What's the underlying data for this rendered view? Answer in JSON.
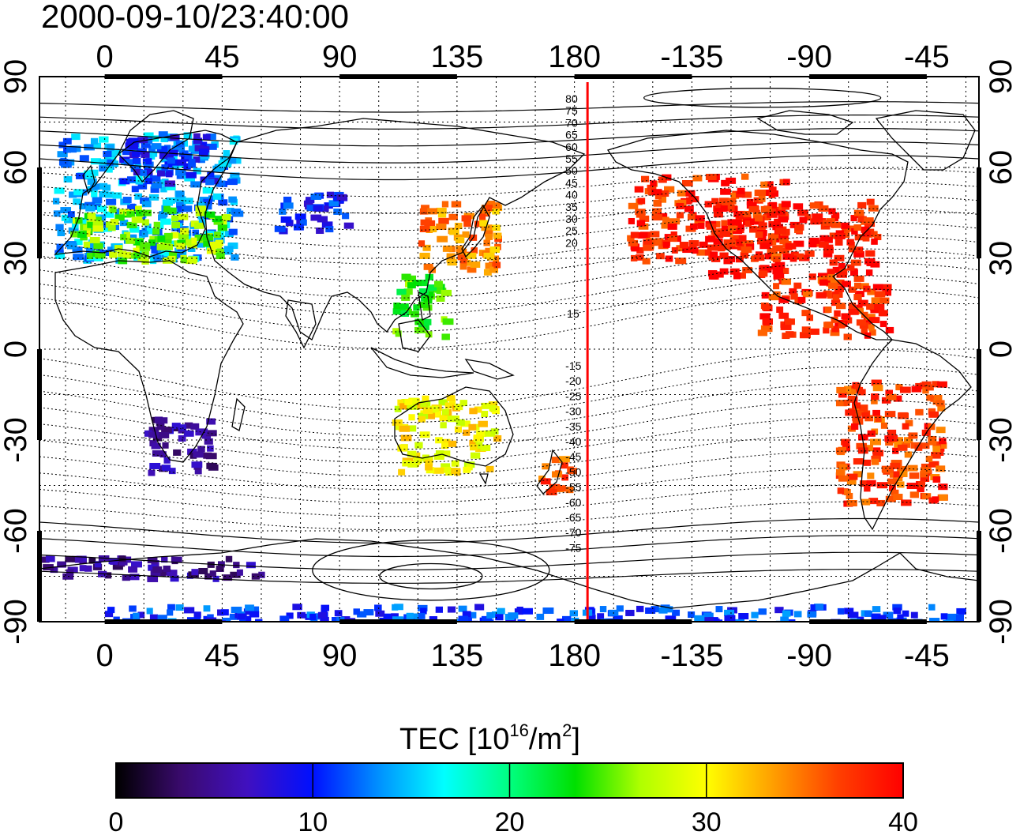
{
  "title": "2000-09-10/23:40:00",
  "top_axis_ticks": [
    "0",
    "45",
    "90",
    "135",
    "180",
    "-135",
    "-90",
    "-45"
  ],
  "bottom_axis_ticks": [
    "0",
    "45",
    "90",
    "135",
    "180",
    "-135",
    "-90",
    "-45"
  ],
  "left_axis_ticks": [
    "90",
    "60",
    "30",
    "0",
    "-30",
    "-60",
    "-90"
  ],
  "right_axis_ticks": [
    "90",
    "60",
    "30",
    "0",
    "-30",
    "-60",
    "-90"
  ],
  "contour_labels_north": [
    "80",
    "75",
    "70",
    "65",
    "60",
    "55",
    "50",
    "45",
    "40",
    "35",
    "30",
    "25",
    "20",
    "15"
  ],
  "contour_labels_south": [
    "-15",
    "-20",
    "-25",
    "-30",
    "-35",
    "-40",
    "-45",
    "-50",
    "-55",
    "-60",
    "-65",
    "-70",
    "-75"
  ],
  "colorbar": {
    "label_prefix": "TEC  [10",
    "label_exp1": "16",
    "label_mid": "/m",
    "label_exp2": "2",
    "label_suffix": "]",
    "ticks": [
      "0",
      "10",
      "20",
      "30",
      "40"
    ],
    "range": [
      0,
      40
    ],
    "stops": [
      "#000000",
      "#3a0a6e",
      "#4010c0",
      "#0010ff",
      "#0090ff",
      "#00ffff",
      "#00ff80",
      "#00e000",
      "#b0ff00",
      "#ffff00",
      "#ffa000",
      "#ff4000",
      "#ff0000"
    ]
  },
  "colors": {
    "terminator": "#ff0000",
    "grid": "#000000",
    "coast": "#000000"
  },
  "chart_data": {
    "type": "heatmap",
    "title": "2000-09-10/23:40:00",
    "x_axis": {
      "type": "longitude",
      "range": [
        -25,
        335
      ],
      "ticks": [
        0,
        45,
        90,
        135,
        180,
        225,
        270,
        315
      ]
    },
    "y_axis": {
      "type": "latitude",
      "range": [
        -90,
        90
      ],
      "ticks": [
        90,
        60,
        30,
        0,
        -30,
        -60,
        -90
      ]
    },
    "value_label": "TEC [10^16/m^2]",
    "value_range": [
      0,
      40
    ],
    "terminator_longitude": 185,
    "regions": [
      {
        "lon": [
          -20,
          50
        ],
        "lat": [
          30,
          72
        ],
        "value": 14
      },
      {
        "lon": [
          -15,
          45
        ],
        "lat": [
          30,
          48
        ],
        "value": 26
      },
      {
        "lon": [
          5,
          40
        ],
        "lat": [
          55,
          72
        ],
        "value": 10
      },
      {
        "lon": [
          65,
          95
        ],
        "lat": [
          40,
          52
        ],
        "value": 10
      },
      {
        "lon": [
          15,
          40
        ],
        "lat": [
          -40,
          -22
        ],
        "value": 5
      },
      {
        "lon": [
          120,
          150
        ],
        "lat": [
          25,
          50
        ],
        "value": 34
      },
      {
        "lon": [
          110,
          130
        ],
        "lat": [
          5,
          25
        ],
        "value": 24
      },
      {
        "lon": [
          110,
          150
        ],
        "lat": [
          -40,
          -15
        ],
        "value": 30
      },
      {
        "lon": [
          165,
          178
        ],
        "lat": [
          -47,
          -35
        ],
        "value": 36
      },
      {
        "lon": [
          200,
          260
        ],
        "lat": [
          30,
          58
        ],
        "value": 38
      },
      {
        "lon": [
          230,
          295
        ],
        "lat": [
          25,
          50
        ],
        "value": 39
      },
      {
        "lon": [
          250,
          300
        ],
        "lat": [
          5,
          25
        ],
        "value": 38
      },
      {
        "lon": [
          280,
          320
        ],
        "lat": [
          -50,
          -10
        ],
        "value": 37
      },
      {
        "lon": [
          -25,
          60
        ],
        "lat": [
          -75,
          -68
        ],
        "value": 5
      },
      {
        "lon": [
          0,
          330
        ],
        "lat": [
          -90,
          -84
        ],
        "value": 11
      }
    ]
  }
}
